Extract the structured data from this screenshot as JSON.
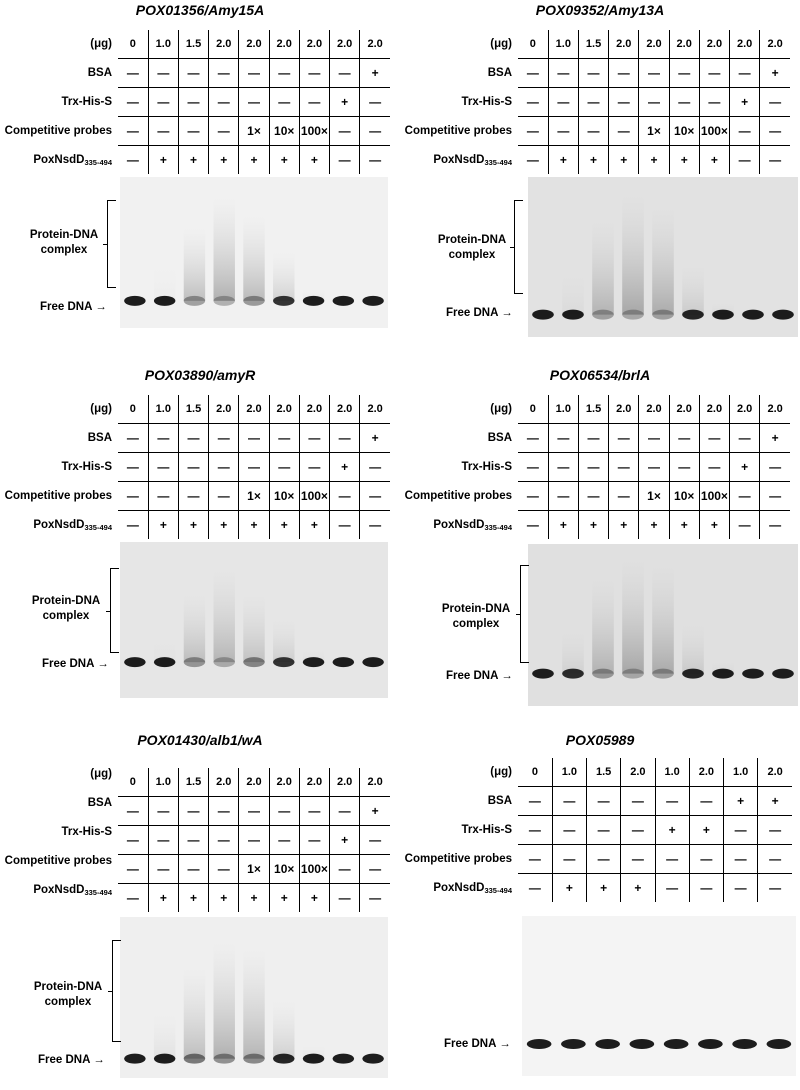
{
  "row_labels": {
    "ug": "(μg)",
    "bsa": "BSA",
    "trx": "Trx-His-S",
    "probes": "Competitive probes",
    "protein_main": "PoxNsdD",
    "protein_sub": "335-494"
  },
  "gel_labels": {
    "complex": "Protein-DNA complex",
    "free_dna": "Free DNA",
    "arrow": "→"
  },
  "panels": [
    {
      "title": "POX01356/Amy15A",
      "ug": [
        "0",
        "1.0",
        "1.5",
        "2.0",
        "2.0",
        "2.0",
        "2.0",
        "2.0",
        "2.0"
      ],
      "bsa": [
        "—",
        "—",
        "—",
        "—",
        "—",
        "—",
        "—",
        "—",
        "+"
      ],
      "trx": [
        "—",
        "—",
        "—",
        "—",
        "—",
        "—",
        "—",
        "+",
        "—"
      ],
      "probes": [
        "—",
        "—",
        "—",
        "—",
        "1×",
        "10×",
        "100×",
        "—",
        "—"
      ],
      "protein": [
        "—",
        "+",
        "+",
        "+",
        "+",
        "+",
        "+",
        "—",
        "—"
      ]
    },
    {
      "title": "POX09352/Amy13A",
      "ug": [
        "0",
        "1.0",
        "1.5",
        "2.0",
        "2.0",
        "2.0",
        "2.0",
        "2.0",
        "2.0"
      ],
      "bsa": [
        "—",
        "—",
        "—",
        "—",
        "—",
        "—",
        "—",
        "—",
        "+"
      ],
      "trx": [
        "—",
        "—",
        "—",
        "—",
        "—",
        "—",
        "—",
        "+",
        "—"
      ],
      "probes": [
        "—",
        "—",
        "—",
        "—",
        "1×",
        "10×",
        "100×",
        "—",
        "—"
      ],
      "protein": [
        "—",
        "+",
        "+",
        "+",
        "+",
        "+",
        "+",
        "—",
        "—"
      ]
    },
    {
      "title": "POX03890/amyR",
      "ug": [
        "0",
        "1.0",
        "1.5",
        "2.0",
        "2.0",
        "2.0",
        "2.0",
        "2.0",
        "2.0"
      ],
      "bsa": [
        "—",
        "—",
        "—",
        "—",
        "—",
        "—",
        "—",
        "—",
        "+"
      ],
      "trx": [
        "—",
        "—",
        "—",
        "—",
        "—",
        "—",
        "—",
        "+",
        "—"
      ],
      "probes": [
        "—",
        "—",
        "—",
        "—",
        "1×",
        "10×",
        "100×",
        "—",
        "—"
      ],
      "protein": [
        "—",
        "+",
        "+",
        "+",
        "+",
        "+",
        "+",
        "—",
        "—"
      ]
    },
    {
      "title": "POX06534/brlA",
      "ug": [
        "0",
        "1.0",
        "1.5",
        "2.0",
        "2.0",
        "2.0",
        "2.0",
        "2.0",
        "2.0"
      ],
      "bsa": [
        "—",
        "—",
        "—",
        "—",
        "—",
        "—",
        "—",
        "—",
        "+"
      ],
      "trx": [
        "—",
        "—",
        "—",
        "—",
        "—",
        "—",
        "—",
        "+",
        "—"
      ],
      "probes": [
        "—",
        "—",
        "—",
        "—",
        "1×",
        "10×",
        "100×",
        "—",
        "—"
      ],
      "protein": [
        "—",
        "+",
        "+",
        "+",
        "+",
        "+",
        "+",
        "—",
        "—"
      ]
    },
    {
      "title": "POX01430/alb1/wA",
      "ug": [
        "0",
        "1.0",
        "1.5",
        "2.0",
        "2.0",
        "2.0",
        "2.0",
        "2.0",
        "2.0"
      ],
      "bsa": [
        "—",
        "—",
        "—",
        "—",
        "—",
        "—",
        "—",
        "—",
        "+"
      ],
      "trx": [
        "—",
        "—",
        "—",
        "—",
        "—",
        "—",
        "—",
        "+",
        "—"
      ],
      "probes": [
        "—",
        "—",
        "—",
        "—",
        "1×",
        "10×",
        "100×",
        "—",
        "—"
      ],
      "protein": [
        "—",
        "+",
        "+",
        "+",
        "+",
        "+",
        "+",
        "—",
        "—"
      ]
    },
    {
      "title": "POX05989",
      "ug": [
        "0",
        "1.0",
        "1.5",
        "2.0",
        "1.0",
        "2.0",
        "1.0",
        "2.0"
      ],
      "bsa": [
        "—",
        "—",
        "—",
        "—",
        "—",
        "—",
        "+",
        "+"
      ],
      "trx": [
        "—",
        "—",
        "—",
        "—",
        "+",
        "+",
        "—",
        "—"
      ],
      "probes": [
        "—",
        "—",
        "—",
        "—",
        "—",
        "—",
        "—",
        "—"
      ],
      "protein": [
        "—",
        "+",
        "+",
        "+",
        "—",
        "—",
        "—",
        "—"
      ]
    }
  ]
}
